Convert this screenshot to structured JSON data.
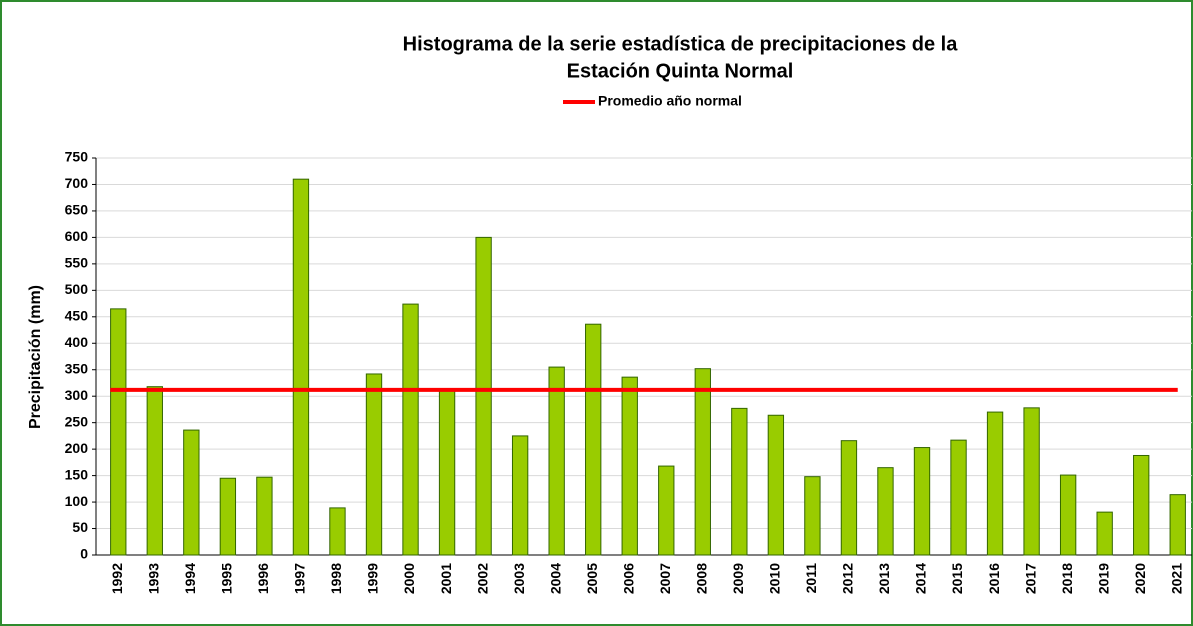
{
  "chart_data": {
    "type": "bar",
    "title": [
      "Histograma de la serie estadística de precipitaciones de la",
      "Estación Quinta Normal"
    ],
    "y_label": "Precipitación  (mm)",
    "categories": [
      "1992",
      "1993",
      "1994",
      "1995",
      "1996",
      "1997",
      "1998",
      "1999",
      "2000",
      "2001",
      "2002",
      "2003",
      "2004",
      "2005",
      "2006",
      "2007",
      "2008",
      "2009",
      "2010",
      "2011",
      "2012",
      "2013",
      "2014",
      "2015",
      "2016",
      "2017",
      "2018",
      "2019",
      "2020",
      "2021"
    ],
    "values": [
      465,
      318,
      236,
      145,
      147,
      710,
      89,
      342,
      474,
      312,
      600,
      225,
      355,
      436,
      336,
      168,
      352,
      277,
      264,
      148,
      216,
      165,
      203,
      217,
      270,
      278,
      151,
      81,
      188,
      114
    ],
    "color": "#99cc00",
    "reference_line": {
      "name": "Promedio año normal",
      "value": 312,
      "color": "#ff0000"
    },
    "ylim": [
      0,
      750
    ],
    "yticks": [
      0,
      50,
      100,
      150,
      200,
      250,
      300,
      350,
      400,
      450,
      500,
      550,
      600,
      650,
      700,
      750
    ],
    "grid": true
  }
}
